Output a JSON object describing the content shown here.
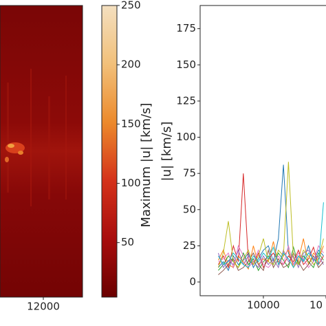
{
  "chart_data": [
    {
      "type": "colorbar",
      "label": "Maximum |u| [km/s]",
      "ylim": [
        4,
        250
      ],
      "yticks": [
        50,
        100,
        150,
        200,
        250
      ],
      "colors": [
        "#6a0000",
        "#a80d0d",
        "#d4321a",
        "#ec8a2c",
        "#f2c07a",
        "#f3dfbf"
      ],
      "xticks": [
        {
          "value": 12000,
          "label": "12000"
        }
      ]
    },
    {
      "type": "line",
      "ylabel": "|u| [km/s]",
      "xlim": [
        9495,
        10500
      ],
      "ylim": [
        -9.5,
        191
      ],
      "yticks": [
        0,
        25,
        50,
        75,
        100,
        125,
        150,
        175
      ],
      "xticks": [
        10000,
        {
          "value": 10500,
          "label": "10"
        }
      ],
      "x": [
        9640,
        9680,
        9720,
        9760,
        9800,
        9840,
        9880,
        9920,
        9960,
        10000,
        10040,
        10080,
        10120,
        10160,
        10200,
        10240,
        10280,
        10320,
        10360,
        10400,
        10440,
        10480
      ],
      "series": [
        {
          "color": "#1f77b4",
          "values": [
            10,
            14,
            8,
            18,
            12,
            15,
            20,
            10,
            16,
            22,
            25,
            14,
            30,
            81,
            20,
            12,
            18,
            15,
            25,
            14,
            22,
            18
          ]
        },
        {
          "color": "#ff7f0e",
          "values": [
            15,
            22,
            12,
            10,
            18,
            14,
            9,
            25,
            12,
            16,
            14,
            28,
            12,
            18,
            22,
            10,
            15,
            30,
            12,
            20,
            16,
            25
          ]
        },
        {
          "color": "#2ca02c",
          "values": [
            8,
            12,
            18,
            14,
            10,
            20,
            12,
            16,
            8,
            14,
            18,
            12,
            20,
            15,
            10,
            24,
            12,
            18,
            14,
            10,
            20,
            15
          ]
        },
        {
          "color": "#d62728",
          "values": [
            12,
            18,
            10,
            25,
            14,
            75,
            15,
            12,
            20,
            10,
            16,
            20,
            14,
            12,
            18,
            14,
            22,
            12,
            16,
            24,
            12,
            18
          ]
        },
        {
          "color": "#9467bd",
          "values": [
            20,
            10,
            15,
            12,
            22,
            12,
            18,
            14,
            10,
            18,
            12,
            16,
            10,
            22,
            14,
            18,
            10,
            20,
            22,
            15,
            18,
            12
          ]
        },
        {
          "color": "#8c564b",
          "values": [
            5,
            8,
            12,
            16,
            8,
            10,
            14,
            20,
            12,
            8,
            22,
            10,
            16,
            10,
            12,
            20,
            14,
            8,
            12,
            18,
            10,
            14
          ]
        },
        {
          "color": "#e377c2",
          "values": [
            14,
            16,
            20,
            10,
            25,
            18,
            10,
            14,
            22,
            12,
            10,
            14,
            18,
            12,
            25,
            12,
            20,
            16,
            10,
            14,
            25,
            20
          ]
        },
        {
          "color": "#bcbd22",
          "values": [
            10,
            20,
            42,
            14,
            10,
            16,
            22,
            12,
            18,
            30,
            14,
            12,
            22,
            18,
            83,
            16,
            12,
            22,
            18,
            12,
            16,
            30
          ]
        },
        {
          "color": "#17becf",
          "values": [
            18,
            12,
            14,
            20,
            16,
            12,
            10,
            18,
            14,
            20,
            16,
            24,
            12,
            20,
            16,
            10,
            18,
            14,
            20,
            16,
            12,
            55
          ]
        }
      ]
    }
  ]
}
